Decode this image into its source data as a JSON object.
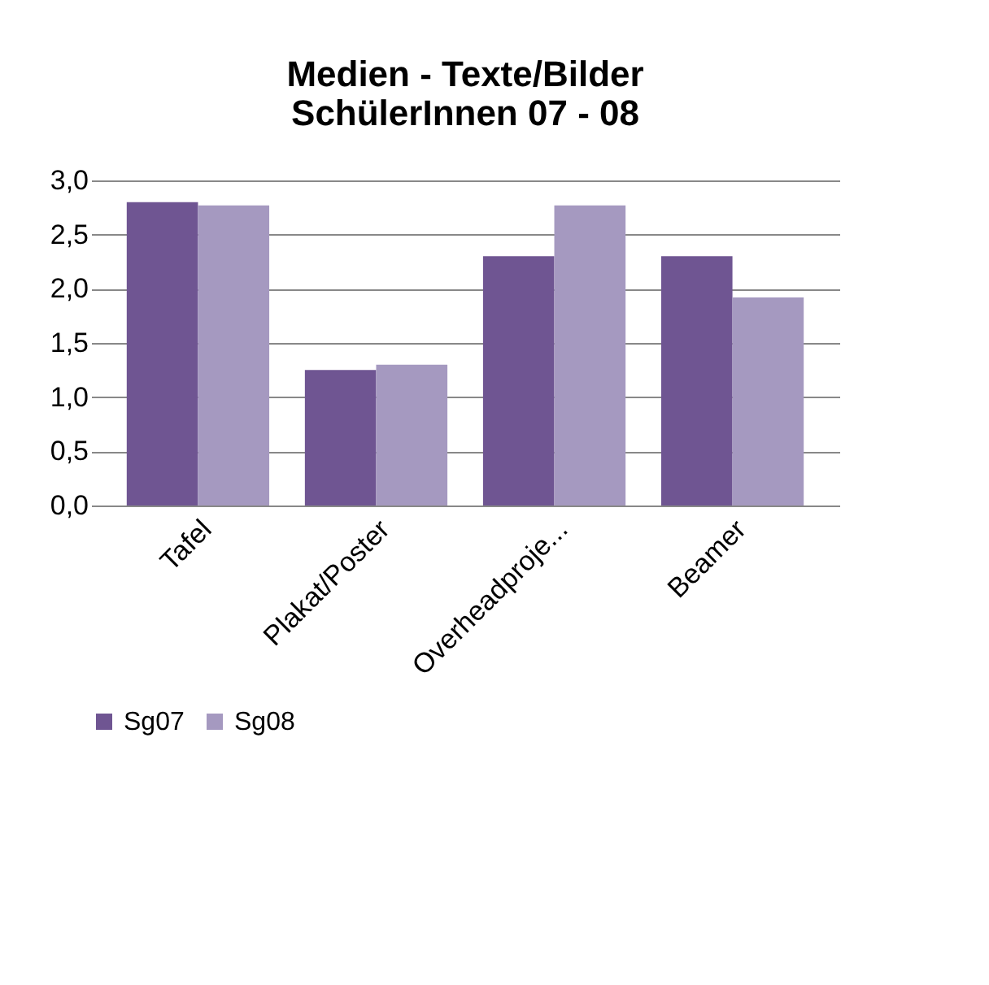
{
  "chart_data": {
    "type": "bar",
    "title": [
      "Medien - Texte/Bilder",
      "SchülerInnen 07 - 08"
    ],
    "categories": [
      "Tafel",
      "Plakat/Poster",
      "Overheadproje...",
      "Beamer"
    ],
    "series": [
      {
        "name": "Sg07",
        "color": "#6f5592",
        "values": [
          2.8,
          1.25,
          2.3,
          2.3
        ]
      },
      {
        "name": "Sg08",
        "color": "#a599c0",
        "values": [
          2.77,
          1.3,
          2.77,
          1.92
        ]
      }
    ],
    "ylim": [
      0,
      3
    ],
    "yticks": [
      {
        "value": 0,
        "label": "0,0"
      },
      {
        "value": 0.5,
        "label": "0,5"
      },
      {
        "value": 1,
        "label": "1,0"
      },
      {
        "value": 1.5,
        "label": "1,5"
      },
      {
        "value": 2,
        "label": "2,0"
      },
      {
        "value": 2.5,
        "label": "2,5"
      },
      {
        "value": 3,
        "label": "3,0"
      }
    ],
    "grid": "y",
    "legend": "bottom"
  }
}
